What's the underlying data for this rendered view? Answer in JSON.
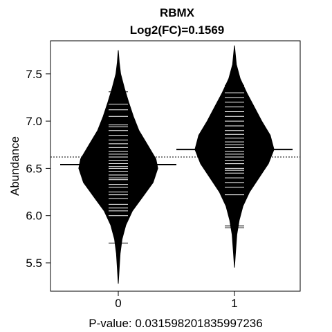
{
  "chart_data": {
    "type": "beanplot",
    "title": "RBMX",
    "subtitle": "Log2(FC)=0.1569",
    "xlabel": "P-value: 0.031598201835997236",
    "ylabel": "Abundance",
    "categories": [
      "0",
      "1"
    ],
    "x_ticks": [
      "0",
      "1"
    ],
    "ylim": [
      5.2,
      7.85
    ],
    "y_ticks": [
      5.5,
      6.0,
      6.5,
      7.0,
      7.5
    ],
    "y_tick_labels": [
      "5.5",
      "6.0",
      "6.5",
      "7.0",
      "7.5"
    ],
    "overall_mean": 6.62,
    "groups": [
      {
        "category": "0",
        "mean": 6.54,
        "range": [
          5.28,
          7.75
        ],
        "density": [
          [
            5.28,
            0.0
          ],
          [
            5.45,
            0.02
          ],
          [
            5.6,
            0.04
          ],
          [
            5.75,
            0.08
          ],
          [
            5.9,
            0.16
          ],
          [
            6.05,
            0.3
          ],
          [
            6.2,
            0.52
          ],
          [
            6.35,
            0.74
          ],
          [
            6.5,
            0.84
          ],
          [
            6.6,
            0.8
          ],
          [
            6.75,
            0.62
          ],
          [
            6.9,
            0.44
          ],
          [
            7.05,
            0.32
          ],
          [
            7.2,
            0.22
          ],
          [
            7.35,
            0.13
          ],
          [
            7.5,
            0.05
          ],
          [
            7.62,
            0.02
          ],
          [
            7.75,
            0.0
          ]
        ],
        "observations": [
          5.71,
          5.95,
          6.0,
          6.05,
          6.08,
          6.12,
          6.18,
          6.22,
          6.25,
          6.3,
          6.33,
          6.38,
          6.4,
          6.43,
          6.47,
          6.5,
          6.52,
          6.55,
          6.58,
          6.62,
          6.65,
          6.68,
          6.72,
          6.76,
          6.8,
          6.85,
          6.9,
          6.94,
          6.96,
          7.05,
          7.12,
          7.18,
          7.31
        ]
      },
      {
        "category": "1",
        "mean": 6.7,
        "range": [
          5.45,
          7.8
        ],
        "density": [
          [
            5.45,
            0.0
          ],
          [
            5.6,
            0.02
          ],
          [
            5.8,
            0.05
          ],
          [
            5.95,
            0.1
          ],
          [
            6.1,
            0.18
          ],
          [
            6.25,
            0.32
          ],
          [
            6.4,
            0.52
          ],
          [
            6.55,
            0.72
          ],
          [
            6.7,
            0.84
          ],
          [
            6.85,
            0.76
          ],
          [
            7.0,
            0.58
          ],
          [
            7.15,
            0.42
          ],
          [
            7.3,
            0.26
          ],
          [
            7.45,
            0.12
          ],
          [
            7.6,
            0.04
          ],
          [
            7.8,
            0.0
          ]
        ],
        "observations": [
          5.87,
          5.89,
          6.22,
          6.3,
          6.35,
          6.4,
          6.45,
          6.48,
          6.5,
          6.55,
          6.58,
          6.62,
          6.65,
          6.68,
          6.72,
          6.75,
          6.78,
          6.82,
          6.86,
          6.9,
          6.95,
          7.0,
          7.05,
          7.1,
          7.15,
          7.2,
          7.25,
          7.3,
          7.36,
          7.38
        ]
      }
    ]
  }
}
